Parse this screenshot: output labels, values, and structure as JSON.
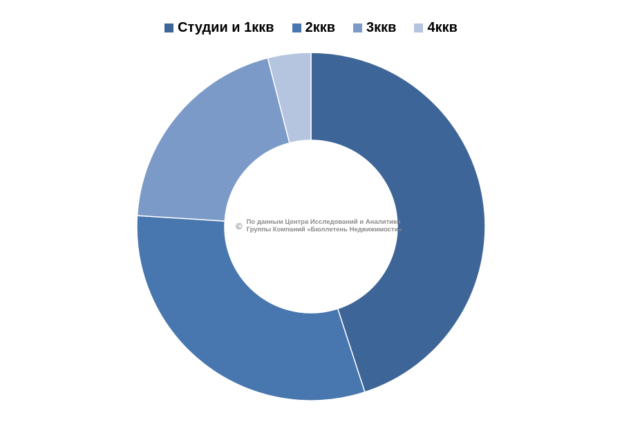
{
  "chart_data": {
    "type": "pie",
    "donut": true,
    "categories": [
      "Студии и 1ккв",
      "2ккв",
      "3ккв",
      "4ккв"
    ],
    "values": [
      45,
      31,
      20,
      4
    ],
    "colors": [
      "#3e6597",
      "#4876ae",
      "#7c9ac8",
      "#b5c4df"
    ]
  },
  "legend": {
    "placement": "top-center",
    "items": [
      {
        "label": "Студии и 1ккв",
        "color": "#3e6597"
      },
      {
        "label": "2ккв",
        "color": "#4876ae"
      },
      {
        "label": "3ккв",
        "color": "#7c9ac8"
      },
      {
        "label": "4ккв",
        "color": "#b5c4df"
      }
    ]
  },
  "watermark": {
    "symbol": "©",
    "line1": "По данным Центра Исследований и Аналитики",
    "line2": "Группы Компаний «Бюллетень Недвижимости»"
  }
}
